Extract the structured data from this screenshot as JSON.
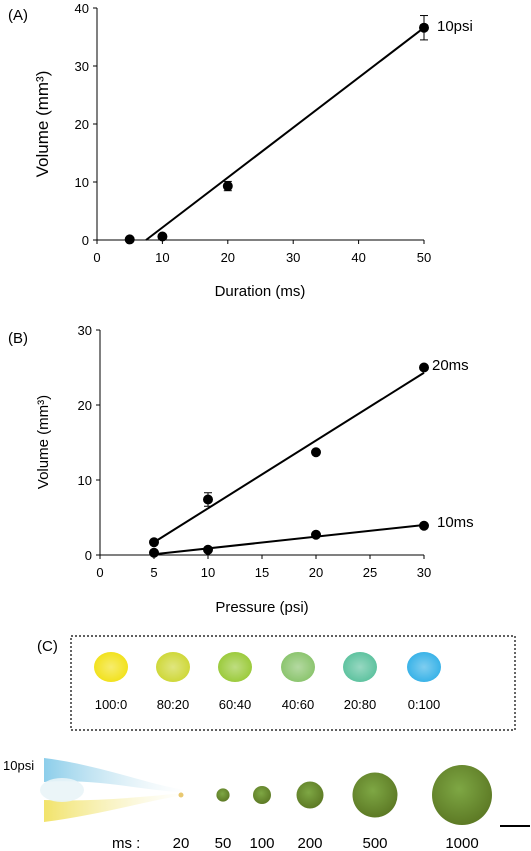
{
  "colors": {
    "ink": "#000000",
    "yellow": "#f2e22a",
    "green": "#7fb84a",
    "blue": "#4fb6e6",
    "olive": "#6b7d2c"
  },
  "chart_data": [
    {
      "type": "scatter",
      "panel_label": "(A)",
      "xlabel": "Duration (ms)",
      "ylabel": "Volume (mm³)",
      "xlim": [
        0,
        50
      ],
      "ylim": [
        0,
        40
      ],
      "xticks": [
        0,
        10,
        20,
        30,
        40,
        50
      ],
      "yticks": [
        0,
        10,
        20,
        30,
        40
      ],
      "grid": false,
      "series": [
        {
          "name": "10psi",
          "points": [
            {
              "x": 5,
              "y": 0.1,
              "err": 0
            },
            {
              "x": 10,
              "y": 0.6,
              "err": 0
            },
            {
              "x": 20,
              "y": 9.3,
              "err": 0.8
            },
            {
              "x": 50,
              "y": 36.6,
              "err": 2.1
            }
          ],
          "fit": [
            [
              7.5,
              0
            ],
            [
              50,
              36.6
            ]
          ]
        }
      ]
    },
    {
      "type": "scatter",
      "panel_label": "(B)",
      "xlabel": "Pressure (psi)",
      "ylabel": "Volume (mm³)",
      "xlim": [
        0,
        30
      ],
      "ylim": [
        0,
        30
      ],
      "xticks": [
        0,
        5,
        10,
        15,
        20,
        25,
        30
      ],
      "yticks": [
        0,
        10,
        20,
        30
      ],
      "grid": false,
      "series": [
        {
          "name": "20ms",
          "points": [
            {
              "x": 5,
              "y": 1.7,
              "err": 0
            },
            {
              "x": 10,
              "y": 7.4,
              "err": 0.9
            },
            {
              "x": 20,
              "y": 13.7,
              "err": 0
            },
            {
              "x": 30,
              "y": 25.0,
              "err": 0
            }
          ],
          "fit": [
            [
              5,
              1.7
            ],
            [
              30,
              24.3
            ]
          ]
        },
        {
          "name": "10ms",
          "points": [
            {
              "x": 5,
              "y": 0.3,
              "err": 0
            },
            {
              "x": 10,
              "y": 0.7,
              "err": 0
            },
            {
              "x": 20,
              "y": 2.7,
              "err": 0
            },
            {
              "x": 30,
              "y": 3.9,
              "err": 0
            }
          ],
          "fit": [
            [
              5,
              0.1
            ],
            [
              30,
              4.0
            ]
          ]
        }
      ]
    }
  ],
  "panel_c": {
    "label": "(C)",
    "ratios": [
      "100:0",
      "80:20",
      "60:40",
      "40:60",
      "20:80",
      "0:100"
    ],
    "ratio_colors": [
      "#f2e21e",
      "#cfd83a",
      "#9ccb3d",
      "#8cc56f",
      "#5fc3a0",
      "#3ab3e8"
    ],
    "pressure_label": "10psi",
    "ms_prefix": "ms :",
    "durations": [
      "20",
      "50",
      "100",
      "200",
      "500",
      "1000"
    ],
    "droplet_fill": [
      0.05,
      0.22,
      0.3,
      0.45,
      0.75,
      1.0
    ]
  }
}
